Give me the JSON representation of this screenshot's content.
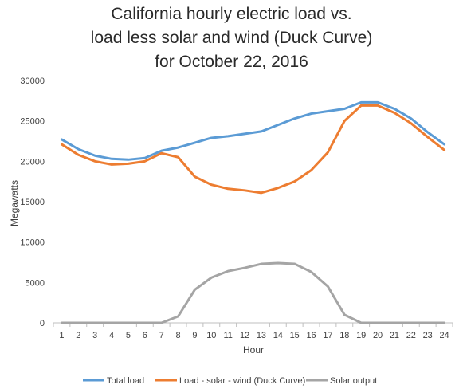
{
  "chart_data": {
    "type": "line",
    "title_lines": [
      "California hourly electric load vs.",
      "load less solar and wind (Duck Curve)",
      "for October 22, 2016"
    ],
    "xlabel": "Hour",
    "ylabel": "Megawatts",
    "x": [
      1,
      2,
      3,
      4,
      5,
      6,
      7,
      8,
      9,
      10,
      11,
      12,
      13,
      14,
      15,
      16,
      17,
      18,
      19,
      20,
      21,
      22,
      23,
      24
    ],
    "x_tick_labels": [
      "1",
      "2",
      "3",
      "4",
      "5",
      "6",
      "7",
      "8",
      "9",
      "10",
      "11",
      "12",
      "13",
      "14",
      "15",
      "16",
      "17",
      "18",
      "19",
      "20",
      "21",
      "22",
      "23",
      "24"
    ],
    "ylim": [
      0,
      30000
    ],
    "y_ticks": [
      0,
      5000,
      10000,
      15000,
      20000,
      25000,
      30000
    ],
    "y_tick_labels": [
      "0",
      "5000",
      "10000",
      "15000",
      "20000",
      "25000",
      "30000"
    ],
    "grid": false,
    "legend_position": "bottom",
    "series": [
      {
        "name": "Total load",
        "color": "#5b9bd5",
        "values": [
          22700,
          21500,
          20700,
          20300,
          20200,
          20400,
          21300,
          21700,
          22300,
          22900,
          23100,
          23400,
          23700,
          24500,
          25300,
          25900,
          26200,
          26500,
          27300,
          27300,
          26500,
          25300,
          23600,
          22100
        ]
      },
      {
        "name": "Load - solar - wind (Duck Curve)",
        "color": "#ed7d31",
        "values": [
          22100,
          20800,
          20000,
          19600,
          19700,
          20000,
          21000,
          20500,
          18100,
          17100,
          16600,
          16400,
          16100,
          16700,
          17500,
          18900,
          21100,
          25000,
          26900,
          26900,
          26000,
          24700,
          23000,
          21400
        ]
      },
      {
        "name": "Solar output",
        "color": "#a5a5a5",
        "values": [
          0,
          0,
          0,
          0,
          0,
          0,
          0,
          800,
          4100,
          5600,
          6400,
          6800,
          7300,
          7400,
          7300,
          6300,
          4500,
          1000,
          0,
          0,
          0,
          0,
          0,
          0
        ]
      }
    ]
  }
}
